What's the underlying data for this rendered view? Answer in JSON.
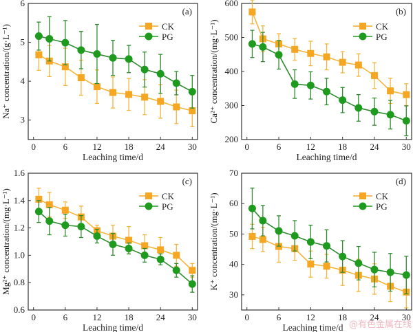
{
  "colors": {
    "CK": "#f5a623",
    "CK_line": "#f5b53c",
    "PG": "#1e9a1e",
    "PG_line": "#2e8b2e",
    "axis": "#333333"
  },
  "watermark": "@有色金属在线",
  "chart_data": [
    {
      "type": "line",
      "panel_label": "(a)",
      "xlabel": "Leaching time/d",
      "ylabel": "Na⁺ concentration/(g·L⁻¹)",
      "x": [
        1,
        3,
        6,
        9,
        12,
        15,
        18,
        21,
        24,
        27,
        30
      ],
      "xlim": [
        -1,
        31
      ],
      "xticks": [
        0,
        6,
        12,
        18,
        24,
        30
      ],
      "ylim": [
        2.5,
        6
      ],
      "yticks": [
        3,
        4,
        5,
        6
      ],
      "ytick_labels": [
        "3",
        "4",
        "5",
        "6"
      ],
      "legend": "top-right",
      "series": [
        {
          "name": "CK",
          "marker": "square",
          "values": [
            4.68,
            4.52,
            4.37,
            4.09,
            3.86,
            3.71,
            3.66,
            3.59,
            3.48,
            3.34,
            3.24
          ],
          "errors": [
            0.4,
            0.4,
            0.48,
            0.45,
            0.43,
            0.4,
            0.41,
            0.45,
            0.43,
            0.43,
            0.41
          ]
        },
        {
          "name": "PG",
          "marker": "circle",
          "values": [
            5.16,
            5.09,
            4.99,
            4.8,
            4.7,
            4.6,
            4.57,
            4.3,
            4.19,
            3.95,
            3.73
          ],
          "errors": [
            0.36,
            0.57,
            0.57,
            0.48,
            0.76,
            0.45,
            0.35,
            0.45,
            0.5,
            0.3,
            0.42
          ]
        }
      ]
    },
    {
      "type": "line",
      "panel_label": "(b)",
      "xlabel": "Leaching time/d",
      "ylabel": "Ca²⁺ concentration/(mg·L⁻¹)",
      "x": [
        1,
        3,
        6,
        9,
        12,
        15,
        18,
        21,
        24,
        27,
        30
      ],
      "xlim": [
        -1,
        31
      ],
      "xticks": [
        0,
        6,
        12,
        18,
        24,
        30
      ],
      "ylim": [
        200,
        600
      ],
      "yticks": [
        200,
        300,
        400,
        500,
        600
      ],
      "ytick_labels": [
        "200",
        "300",
        "400",
        "500",
        "600"
      ],
      "legend": "top-right",
      "series": [
        {
          "name": "CK",
          "marker": "square",
          "values": [
            575,
            496,
            481,
            465,
            453,
            443,
            427,
            419,
            388,
            343,
            332
          ],
          "errors": [
            35,
            38,
            30,
            32,
            36,
            38,
            31,
            33,
            38,
            37,
            32
          ]
        },
        {
          "name": "PG",
          "marker": "circle",
          "values": [
            481,
            472,
            449,
            363,
            359,
            341,
            316,
            293,
            282,
            273,
            255
          ],
          "errors": [
            40,
            43,
            42,
            42,
            40,
            39,
            37,
            39,
            40,
            42,
            44
          ]
        }
      ]
    },
    {
      "type": "line",
      "panel_label": "(c)",
      "xlabel": "Leaching time/d",
      "ylabel": "Mg²⁺ concentration/(mg·L⁻¹)",
      "x": [
        1,
        3,
        6,
        9,
        12,
        15,
        18,
        21,
        24,
        27,
        30
      ],
      "xlim": [
        -1,
        31
      ],
      "xticks": [
        0,
        6,
        12,
        18,
        24,
        30
      ],
      "ylim": [
        0.6,
        1.6
      ],
      "yticks": [
        0.6,
        0.8,
        1.0,
        1.2,
        1.4,
        1.6
      ],
      "ytick_labels": [
        "0.6",
        "0.8",
        "1.0",
        "1.2",
        "1.4",
        "1.6"
      ],
      "legend": "top-right",
      "series": [
        {
          "name": "CK",
          "marker": "square",
          "values": [
            1.41,
            1.37,
            1.33,
            1.28,
            1.18,
            1.14,
            1.11,
            1.07,
            1.04,
            1.0,
            0.89
          ],
          "errors": [
            0.08,
            0.09,
            0.06,
            0.08,
            0.04,
            0.08,
            0.1,
            0.08,
            0.09,
            0.08,
            0.05
          ]
        },
        {
          "name": "PG",
          "marker": "circle",
          "values": [
            1.32,
            1.25,
            1.22,
            1.21,
            1.14,
            1.08,
            1.05,
            1.0,
            0.97,
            0.89,
            0.79
          ],
          "errors": [
            0.08,
            0.1,
            0.08,
            0.08,
            0.05,
            0.08,
            0.04,
            0.05,
            0.04,
            0.05,
            0.06
          ]
        }
      ]
    },
    {
      "type": "line",
      "panel_label": "(d)",
      "xlabel": "Leaching time/d",
      "ylabel": "K⁺ concentration/(mg·L⁻¹)",
      "x": [
        1,
        3,
        6,
        9,
        12,
        15,
        18,
        21,
        24,
        27,
        30
      ],
      "xlim": [
        -1,
        31
      ],
      "xticks": [
        0,
        6,
        12,
        18,
        24,
        30
      ],
      "ylim": [
        25,
        70
      ],
      "yticks": [
        30,
        40,
        50,
        60,
        70
      ],
      "ytick_labels": [
        "30",
        "40",
        "50",
        "60",
        "70"
      ],
      "legend": "top-right",
      "series": [
        {
          "name": "CK",
          "marker": "square",
          "values": [
            49.2,
            48.2,
            45.9,
            45.2,
            40.1,
            39.4,
            38.1,
            36.4,
            35.2,
            32.8,
            30.9
          ],
          "errors": [
            4,
            4,
            5.2,
            3.9,
            4.3,
            3.9,
            5,
            5.3,
            5,
            5,
            5.2
          ]
        },
        {
          "name": "PG",
          "marker": "circle",
          "values": [
            58.4,
            54.4,
            51.0,
            49.4,
            47.4,
            46.1,
            42.6,
            40.4,
            38.3,
            37.4,
            36.5
          ],
          "errors": [
            6.7,
            5,
            5,
            5,
            5.5,
            5.3,
            5.2,
            5.5,
            5.7,
            6.2,
            6.2
          ]
        }
      ]
    }
  ]
}
